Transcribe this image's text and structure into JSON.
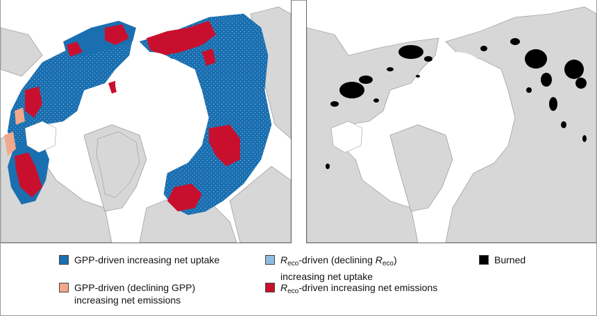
{
  "colors": {
    "land": "#d7d7d7",
    "ocean": "#ffffff",
    "coast": "#888888",
    "gpp_uptake": "#1a6fb0",
    "gpp_emissions": "#f0a98a",
    "reco_uptake": "#8fbde0",
    "reco_emissions": "#c8102e",
    "burned": "#000000"
  },
  "legend": {
    "gpp_uptake": {
      "line1": "GPP-driven increasing net uptake"
    },
    "gpp_emissions": {
      "line1": "GPP-driven (declining GPP)",
      "line2": "increasing net emissions"
    },
    "reco_uptake": {
      "r": "R",
      "eco_sub": "eco",
      "mid": "-driven (declining ",
      "r2": "R",
      "eco_sub2": "eco",
      "close": ")",
      "line2": "increasing net uptake"
    },
    "reco_emissions": {
      "r": "R",
      "eco_sub": "eco",
      "rest": "-driven increasing net emissions"
    },
    "burned": {
      "line1": "Burned"
    }
  }
}
